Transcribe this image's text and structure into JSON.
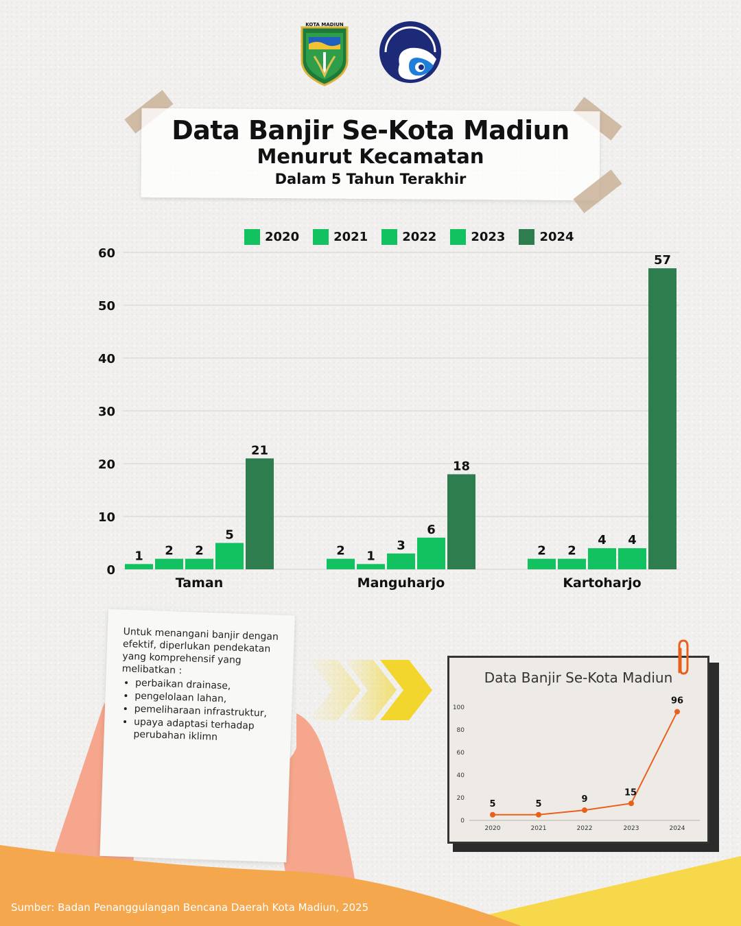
{
  "logos": {
    "city_logo_text": "KOTA MADIUN",
    "city_logo_icon": "kota-madiun-emblem",
    "ministry_logo_icon": "komdigi-swirl-logo"
  },
  "header": {
    "title": "Data Banjir Se-Kota Madiun",
    "subtitle1": "Menurut Kecamatan",
    "subtitle2": "Dalam 5 Tahun Terakhir"
  },
  "colors": {
    "bar_2020_2023": "#12c15f",
    "bar_2024": "#2e7d4f",
    "line": "#e8601c",
    "footer_orange": "#f4a74c",
    "footer_yellow": "#f7d84a",
    "arrow_yellow": "#f2d62e",
    "skin": "#f6a68c"
  },
  "chart_data": [
    {
      "type": "bar",
      "title": "",
      "categories": [
        "Taman",
        "Manguharjo",
        "Kartoharjo"
      ],
      "series": [
        {
          "name": "2020",
          "values": [
            1,
            2,
            2
          ]
        },
        {
          "name": "2021",
          "values": [
            2,
            1,
            2
          ]
        },
        {
          "name": "2022",
          "values": [
            2,
            3,
            4
          ]
        },
        {
          "name": "2023",
          "values": [
            5,
            6,
            4
          ]
        },
        {
          "name": "2024",
          "values": [
            21,
            18,
            57
          ]
        }
      ],
      "ylim": [
        0,
        60
      ],
      "yticks": [
        0,
        10,
        20,
        30,
        40,
        50,
        60
      ],
      "xlabel": "",
      "ylabel": "",
      "grid": true,
      "legend": "top"
    },
    {
      "type": "line",
      "title": "Data Banjir Se-Kota Madiun",
      "x": [
        "2020",
        "2021",
        "2022",
        "2023",
        "2024"
      ],
      "series": [
        {
          "values": [
            5,
            5,
            9,
            15,
            96
          ]
        }
      ],
      "ylim": [
        0,
        100
      ],
      "yticks": [
        0,
        20,
        40,
        60,
        80,
        100
      ],
      "xlabel": "",
      "ylabel": "",
      "grid": false
    }
  ],
  "note": {
    "intro": "Untuk menangani banjir dengan efektif, diperlukan pendekatan yang komprehensif yang melibatkan :",
    "items": [
      "perbaikan drainase,",
      "pengelolaan lahan,",
      "pemeliharaan infrastruktur,",
      "upaya adaptasi terhadap perubahan iklimn"
    ]
  },
  "footer": {
    "source": "Sumber: Badan Penanggulangan Bencana Daerah Kota Madiun, 2025"
  }
}
